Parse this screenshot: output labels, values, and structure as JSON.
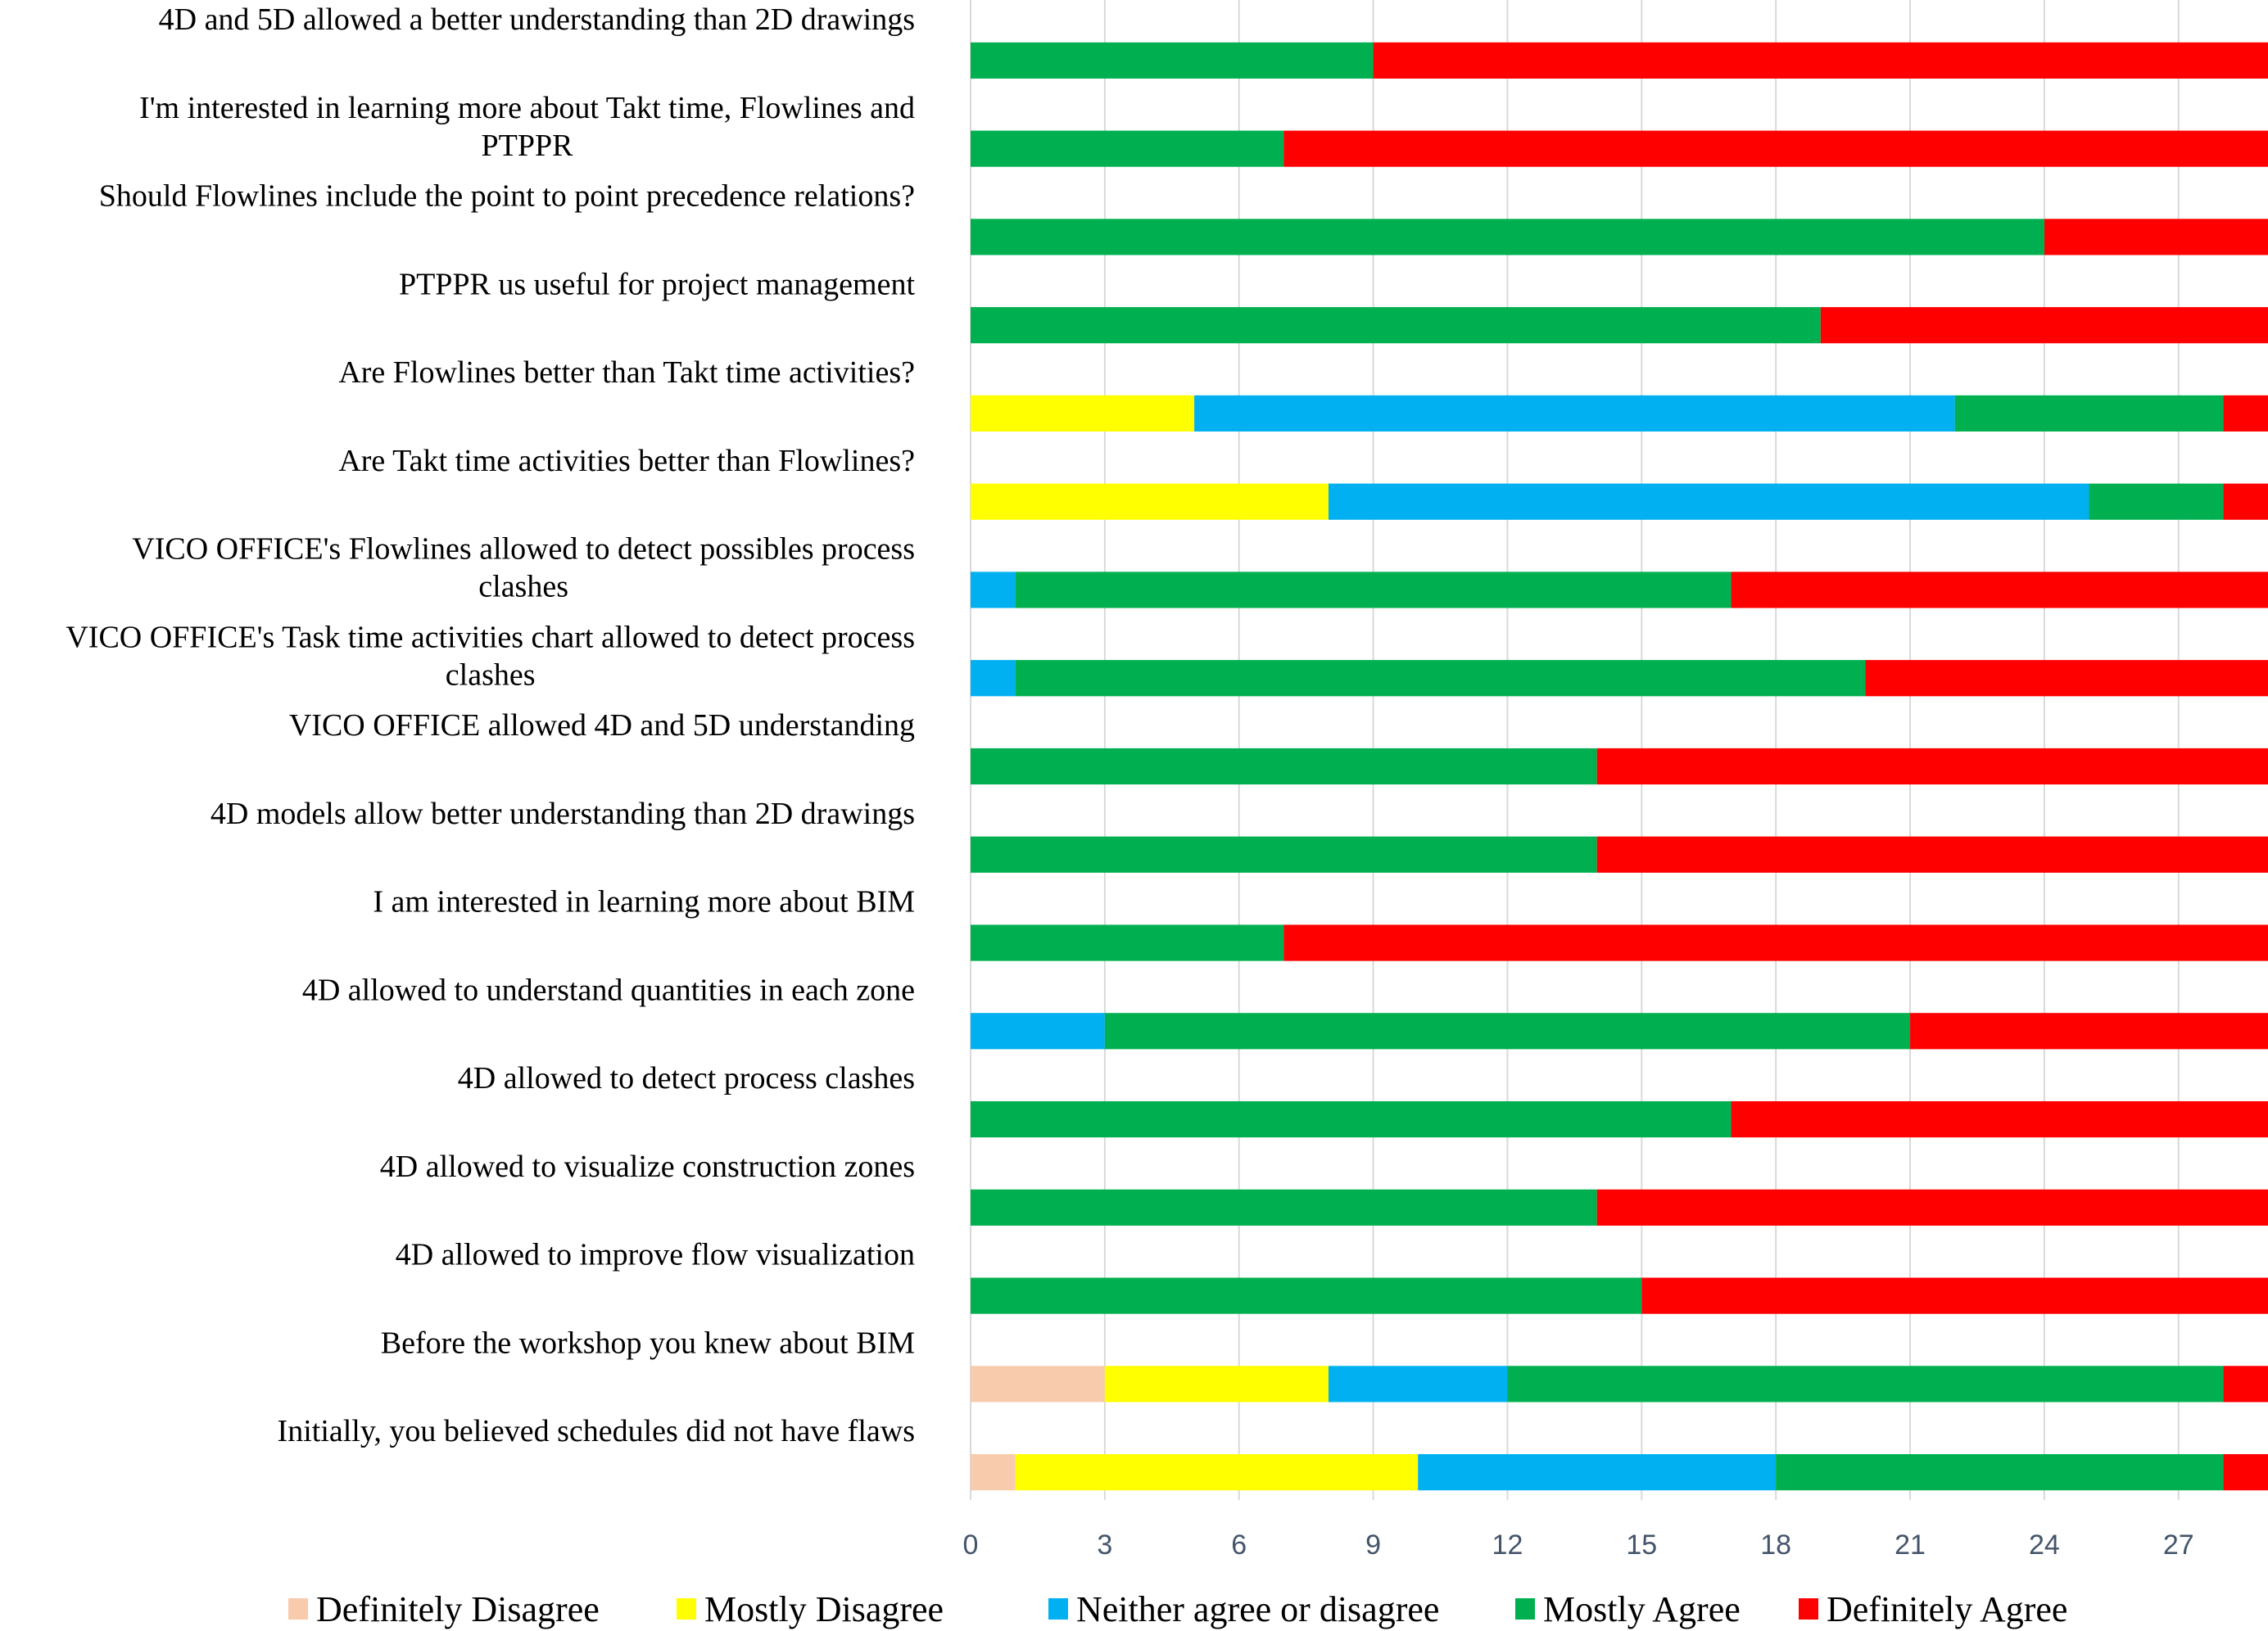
{
  "chart_data": {
    "type": "bar",
    "orientation": "horizontal",
    "stacked": true,
    "title": "",
    "xlabel": "",
    "ylabel": "",
    "xlim": [
      0,
      29
    ],
    "x_ticks": [
      0,
      3,
      6,
      9,
      12,
      15,
      18,
      21,
      24,
      27
    ],
    "grid": "vertical",
    "legend_position": "bottom",
    "categories": [
      "4D and 5D allowed a better understanding than 2D drawings",
      "I'm interested in learning more about Takt time, Flowlines and PTPPR",
      "Should Flowlines include the point to point precedence relations?",
      "PTPPR us useful for project management",
      "Are Flowlines better than Takt time activities?",
      "Are Takt time activities better than Flowlines?",
      "VICO OFFICE's Flowlines allowed to detect possibles process clashes",
      "VICO OFFICE's Task time activities chart allowed to detect process clashes",
      "VICO OFFICE allowed 4D and 5D understanding",
      "4D models allow better understanding than 2D drawings",
      "I am interested in learning more about BIM",
      "4D allowed to understand quantities in each zone",
      "4D allowed to detect process clashes",
      "4D allowed to visualize construction zones",
      "4D allowed to improve flow visualization",
      "Before the workshop you knew about BIM",
      "Initially, you believed schedules did not have flaws"
    ],
    "category_lines": [
      [
        "4D and 5D allowed a better understanding than 2D drawings"
      ],
      [
        "I'm interested in learning more about Takt time, Flowlines and",
        "PTPPR"
      ],
      [
        "Should Flowlines include the point to point precedence relations?"
      ],
      [
        "PTPPR us useful for project management"
      ],
      [
        "Are Flowlines better than Takt time activities?"
      ],
      [
        "Are Takt time activities better than Flowlines?"
      ],
      [
        "VICO OFFICE's Flowlines allowed to detect possibles process",
        "clashes"
      ],
      [
        "VICO OFFICE's Task time activities chart allowed to detect process",
        "clashes"
      ],
      [
        "VICO OFFICE allowed 4D and 5D understanding"
      ],
      [
        "4D models allow better understanding than 2D drawings"
      ],
      [
        "I am interested in learning more about BIM"
      ],
      [
        "4D allowed to understand quantities in each zone"
      ],
      [
        "4D allowed to detect process clashes"
      ],
      [
        "4D allowed to visualize construction zones"
      ],
      [
        "4D allowed to improve flow visualization"
      ],
      [
        "Before the workshop you knew about BIM"
      ],
      [
        "Initially, you believed schedules did not have flaws"
      ]
    ],
    "series": [
      {
        "name": "Definitely Disagree",
        "color": "#f8cbad",
        "values": [
          0,
          0,
          0,
          0,
          0,
          0,
          0,
          0,
          0,
          0,
          0,
          0,
          0,
          0,
          0,
          3,
          1
        ]
      },
      {
        "name": "Mostly Disagree",
        "color": "#ffff00",
        "values": [
          0,
          0,
          0,
          0,
          5,
          8,
          0,
          0,
          0,
          0,
          0,
          0,
          0,
          0,
          0,
          5,
          9
        ]
      },
      {
        "name": "Neither agree or disagree",
        "color": "#00b0f0",
        "values": [
          0,
          0,
          0,
          0,
          17,
          17,
          1,
          1,
          0,
          0,
          0,
          3,
          0,
          0,
          0,
          4,
          8
        ]
      },
      {
        "name": "Mostly Agree",
        "color": "#00b050",
        "values": [
          9,
          7,
          24,
          19,
          6,
          3,
          16,
          19,
          14,
          14,
          7,
          18,
          17,
          14,
          15,
          16,
          10
        ]
      },
      {
        "name": "Definitely Agree",
        "color": "#ff0000",
        "values": [
          20,
          22,
          5,
          10,
          1,
          1,
          12,
          9,
          15,
          15,
          22,
          8,
          12,
          15,
          14,
          1,
          1
        ]
      }
    ]
  }
}
